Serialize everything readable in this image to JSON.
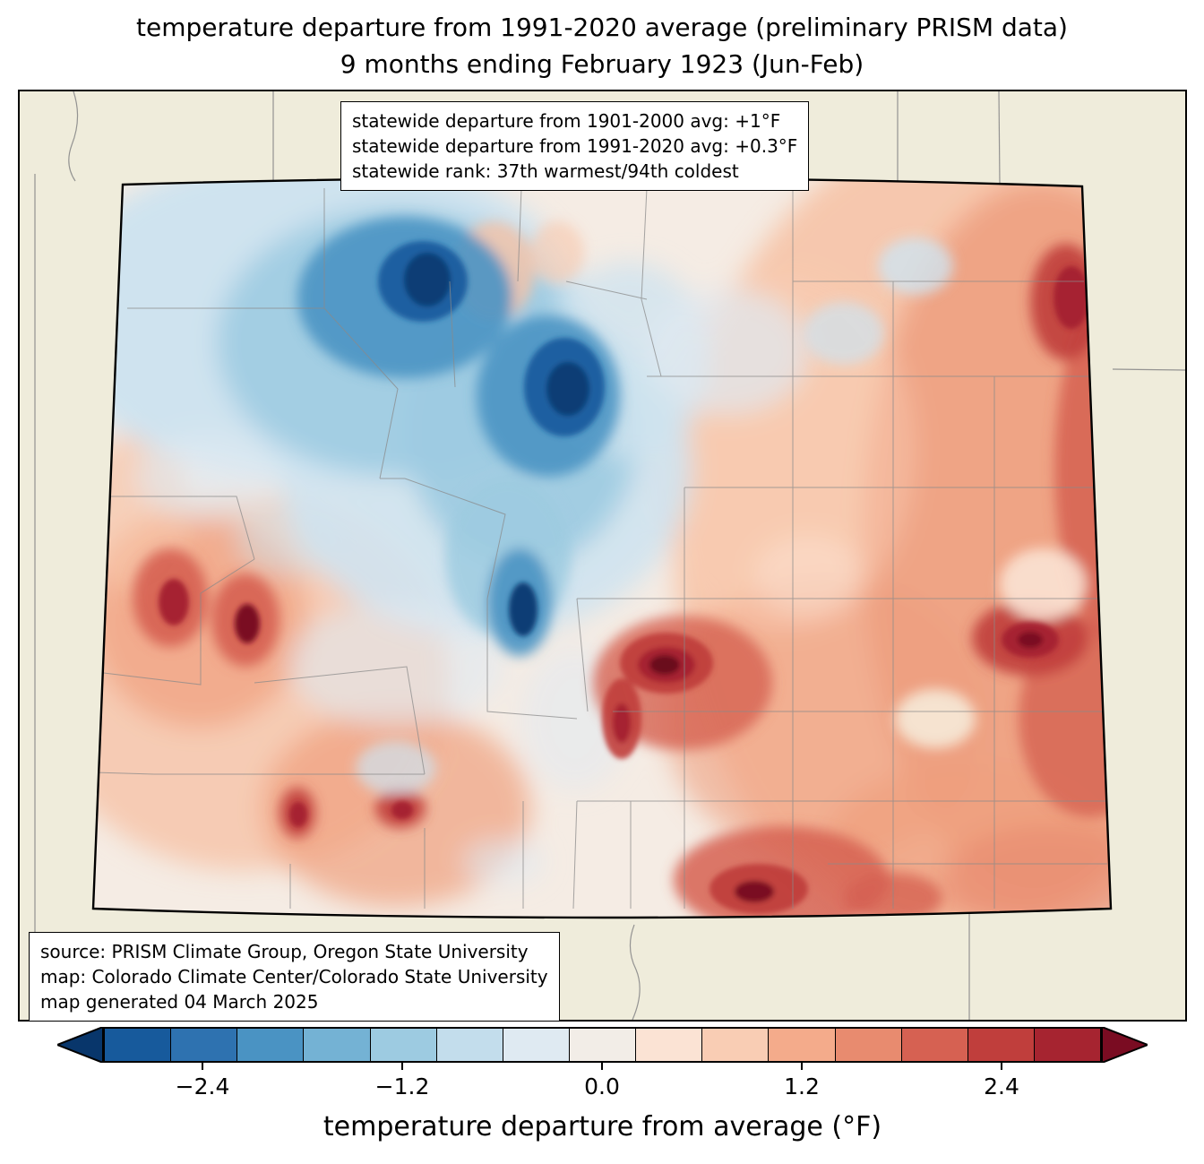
{
  "title": {
    "line1": "temperature departure from 1991-2020 average (preliminary PRISM data)",
    "line2": "9 months ending February 1923 (Jun-Feb)"
  },
  "stats_box": {
    "lines": [
      "statewide departure from 1901-2000 avg: +1°F",
      "statewide departure from 1991-2020 avg: +0.3°F",
      "statewide rank: 37th warmest/94th coldest"
    ]
  },
  "source_box": {
    "lines": [
      "source: PRISM Climate Group, Oregon State University",
      "map: Colorado Climate Center/Colorado State University",
      "map generated 04 March 2025"
    ]
  },
  "map": {
    "region": "Colorado with county boundaries",
    "outside_background_hex": "#efecdb",
    "state_border_hex": "#000000",
    "county_line_hex": "#8a8a8a"
  },
  "colorbar": {
    "label": "temperature departure from average (°F)",
    "ticks": [
      "−2.4",
      "−1.2",
      "0.0",
      "1.2",
      "2.4"
    ],
    "tick_values": [
      -2.4,
      -1.2,
      0.0,
      1.2,
      2.4
    ],
    "value_range": [
      -3.0,
      3.0
    ],
    "segment_colors": [
      "#175a9c",
      "#2e72b0",
      "#4a93c3",
      "#74b2d4",
      "#9dcbe1",
      "#c3ddec",
      "#dfeaf2",
      "#f2ede7",
      "#fbe3d4",
      "#f9cdb4",
      "#f4ab8b",
      "#e88b6f",
      "#d66152",
      "#c03e3c",
      "#a62430"
    ],
    "arrow_left_color": "#08366b",
    "arrow_right_color": "#7a0c22"
  }
}
